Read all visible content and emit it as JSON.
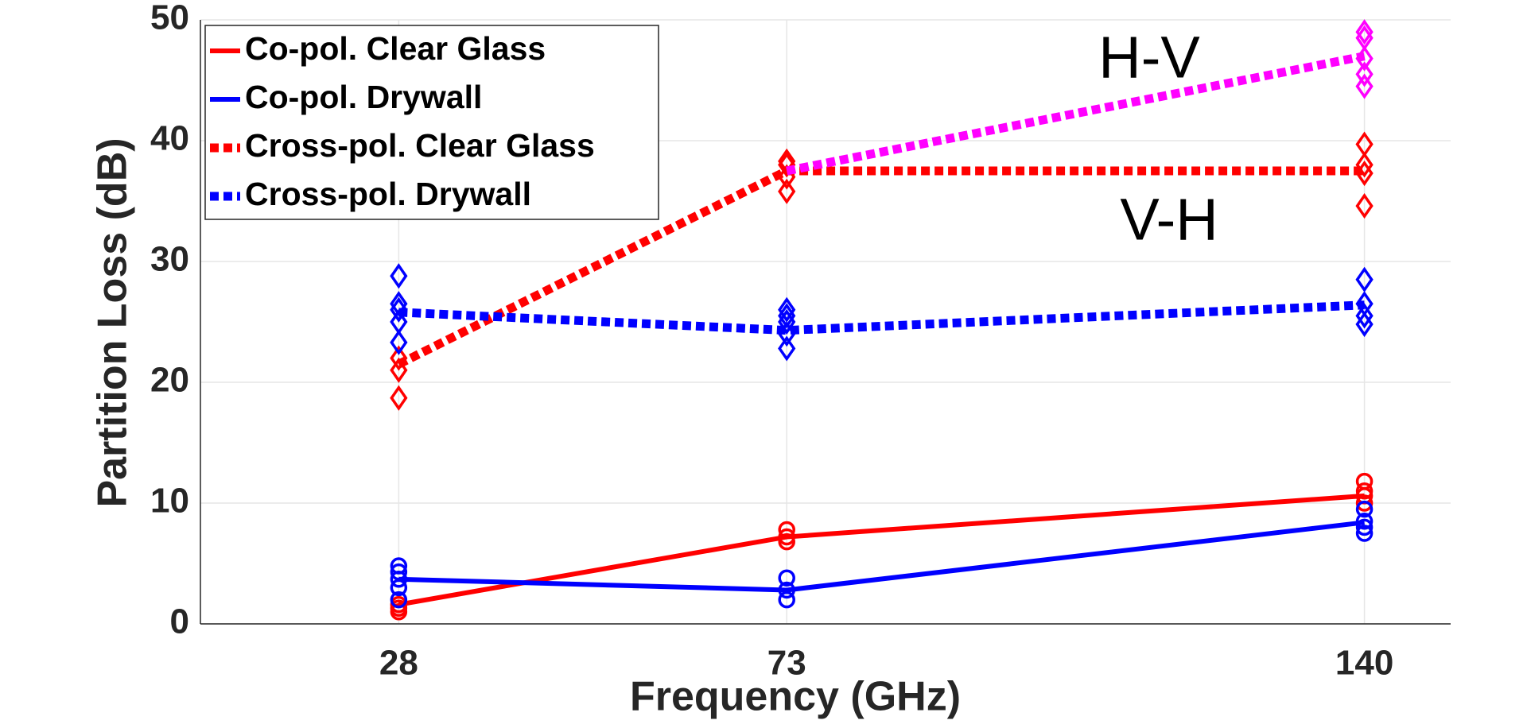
{
  "chart_data": {
    "type": "line",
    "xlabel": "Frequency (GHz)",
    "ylabel": "Partition Loss (dB)",
    "x": [
      28,
      73,
      140
    ],
    "xlim": [
      5,
      150
    ],
    "xticks": [
      28,
      73,
      140
    ],
    "ylim": [
      0,
      50
    ],
    "yticks": [
      0,
      10,
      20,
      30,
      40,
      50
    ],
    "grid": true,
    "legend": "upper left",
    "annotations": [
      "H-V",
      "V-H"
    ],
    "series": [
      {
        "name": "Co-pol. Clear Glass",
        "color": "#ff0000",
        "style": "solid",
        "marker": "circle",
        "values": [
          1.6,
          7.2,
          10.6
        ],
        "measurements": [
          [
            1.0,
            1.3,
            1.6
          ],
          [
            6.8,
            7.2,
            7.8
          ],
          [
            10.0,
            10.6,
            11.0,
            11.8
          ]
        ]
      },
      {
        "name": "Co-pol. Drywall",
        "color": "#0000ff",
        "style": "solid",
        "marker": "circle",
        "values": [
          3.7,
          2.8,
          8.4
        ],
        "measurements": [
          [
            2.0,
            3.0,
            3.7,
            4.3,
            4.8
          ],
          [
            2.0,
            2.8,
            3.8
          ],
          [
            7.5,
            8.0,
            8.5,
            9.5
          ]
        ]
      },
      {
        "name": "Cross-pol. Clear Glass",
        "color": "#ff0000",
        "style": "dotted",
        "marker": "diamond",
        "values": [
          21.5,
          37.5,
          37.5
        ],
        "measurements": [
          [
            18.7,
            21.0,
            22.0
          ],
          [
            35.8,
            37.0,
            38.0,
            38.3
          ],
          [
            34.6,
            37.3,
            38.0,
            39.7
          ]
        ]
      },
      {
        "name": "Cross-pol. Drywall",
        "color": "#0000ff",
        "style": "dotted",
        "marker": "diamond",
        "values": [
          25.8,
          24.3,
          26.4
        ],
        "measurements": [
          [
            23.3,
            25.0,
            26.0,
            26.5,
            28.8
          ],
          [
            22.8,
            24.0,
            25.0,
            25.5,
            26.0
          ],
          [
            24.8,
            25.5,
            26.5,
            28.5
          ]
        ]
      },
      {
        "color": "#ff00ff",
        "style": "dotted",
        "marker": "diamond",
        "values": [
          null,
          37.5,
          47.0
        ],
        "measurements": [
          [],
          [],
          [
            44.5,
            45.5,
            46.8,
            48.5,
            49.0
          ]
        ]
      }
    ]
  }
}
